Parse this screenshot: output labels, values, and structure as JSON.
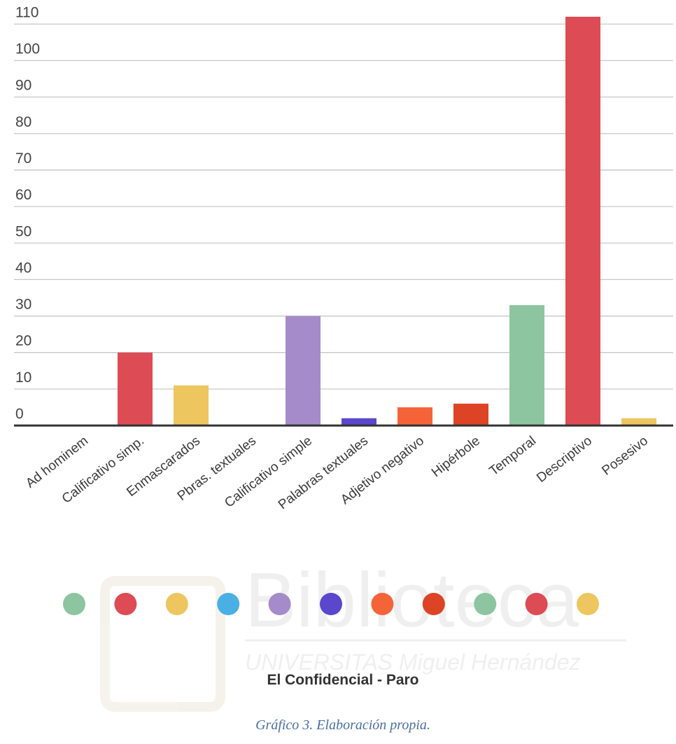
{
  "chart_data": {
    "type": "bar",
    "categories": [
      "Ad hominem",
      "Calificativo simp.",
      "Enmascarados",
      "Pbras. textuales",
      "Calificativo simple",
      "Palabras textuales",
      "Adjetivo negativo",
      "Hipérbole",
      "Temporal",
      "Descriptivo",
      "Posesivo"
    ],
    "values": [
      0,
      20,
      11,
      0,
      30,
      2,
      5,
      6,
      33,
      112,
      2
    ],
    "colors": [
      "#8cc5a0",
      "#dd4b54",
      "#edc65f",
      "#4ab0e3",
      "#a58bc9",
      "#5a47cc",
      "#f46438",
      "#dc4425",
      "#8cc5a0",
      "#dd4b54",
      "#edc65f"
    ],
    "yticks": [
      0,
      10,
      20,
      30,
      40,
      50,
      60,
      70,
      80,
      90,
      100,
      110
    ],
    "ylim": [
      0,
      110
    ],
    "grid": true,
    "legend_title": "El Confidencial - Paro",
    "legend_placement": "bottom"
  },
  "caption": "Gráfico 3. Elaboración propia.",
  "watermark": {
    "word": "Biblioteca",
    "subtitle": "UNIVERSITAS Miguel Hernández"
  }
}
